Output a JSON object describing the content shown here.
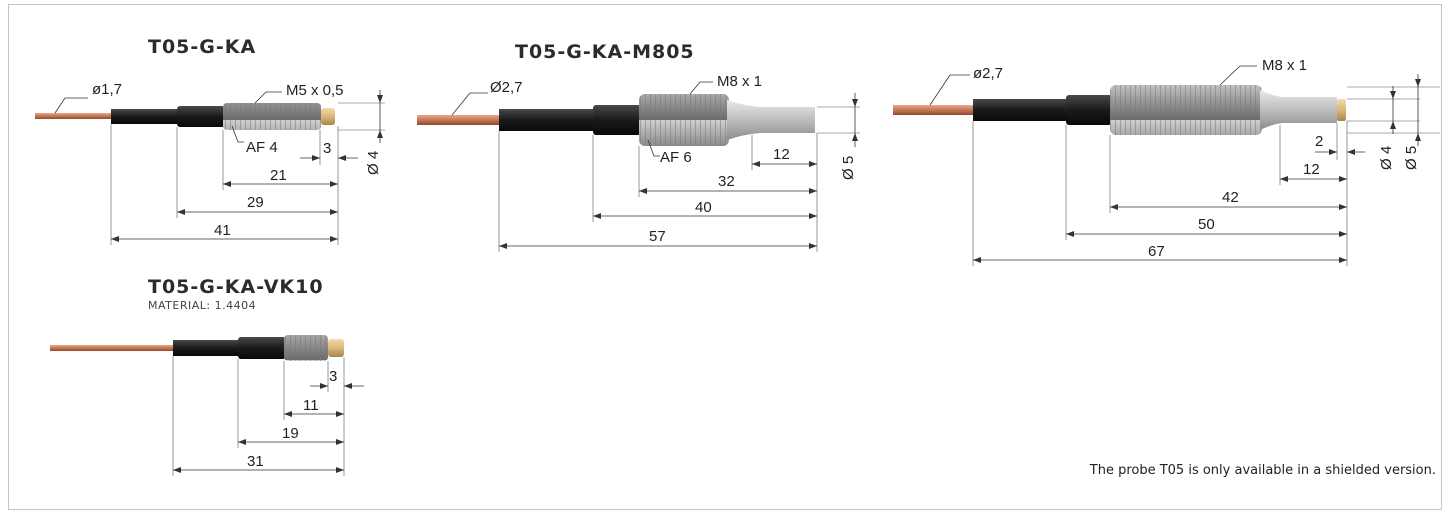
{
  "colors": {
    "wire": "#c87654",
    "sheath": "#1f1f1f",
    "thread": "#9a9a9a",
    "tip": "#d9b77a",
    "frame_border": "#b8c8d8"
  },
  "drawings": {
    "ka": {
      "title": "T05-G-KA",
      "wire_dia": "ø1,7",
      "thread": "M5 x 0,5",
      "af": "AF 4",
      "dims": [
        "3",
        "21",
        "29",
        "41"
      ],
      "dia": "Ø 4"
    },
    "m805": {
      "title": "T05-G-KA-M805",
      "wire_dia": "Ø2,7",
      "thread": "M8 x 1",
      "af": "AF 6",
      "dims": [
        "12",
        "32",
        "40",
        "57"
      ],
      "dia": "Ø 5"
    },
    "long": {
      "wire_dia": "ø2,7",
      "thread": "M8 x 1",
      "dims": [
        "2",
        "12",
        "42",
        "50",
        "67"
      ],
      "dia_a": "Ø 4",
      "dia_b": "Ø 5"
    },
    "vk10": {
      "title": "T05-G-KA-VK10",
      "material": "MATERIAL: 1.4404",
      "dims": [
        "3",
        "11",
        "19",
        "31"
      ]
    }
  },
  "note": "The probe T05 is only available in a shielded version."
}
